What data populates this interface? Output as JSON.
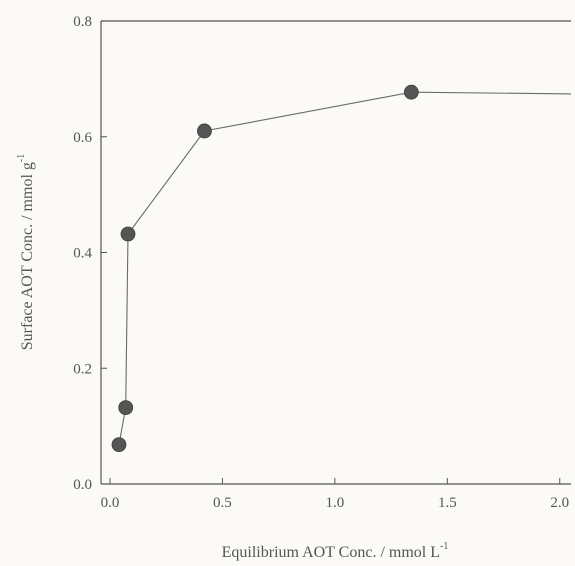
{
  "chart_data": {
    "type": "scatter",
    "title": "",
    "xlabel": "Equilibrium AOT Conc. / mmol L",
    "xlabel_sup": "-1",
    "ylabel": "Surface AOT Conc. / mmol g",
    "ylabel_sup": "-1",
    "xlim": [
      -0.04,
      2.05
    ],
    "ylim": [
      0.0,
      0.8
    ],
    "x_ticks": [
      0.0,
      0.5,
      1.0,
      1.5,
      2.0
    ],
    "x_tick_labels": [
      "0.0",
      "0.5",
      "1.0",
      "1.5",
      "2.0"
    ],
    "y_ticks": [
      0.0,
      0.2,
      0.4,
      0.6,
      0.8
    ],
    "y_tick_labels": [
      "0.0",
      "0.2",
      "0.4",
      "0.6",
      "0.8"
    ],
    "grid": false,
    "legend": "none",
    "series": [
      {
        "x": [
          0.04,
          0.07,
          0.08,
          0.42,
          1.34
        ],
        "y": [
          0.068,
          0.132,
          0.432,
          0.61,
          0.677
        ],
        "plateau_y": 0.674,
        "marker_color": "#555555",
        "line_color": "#6a6a6a"
      }
    ]
  }
}
